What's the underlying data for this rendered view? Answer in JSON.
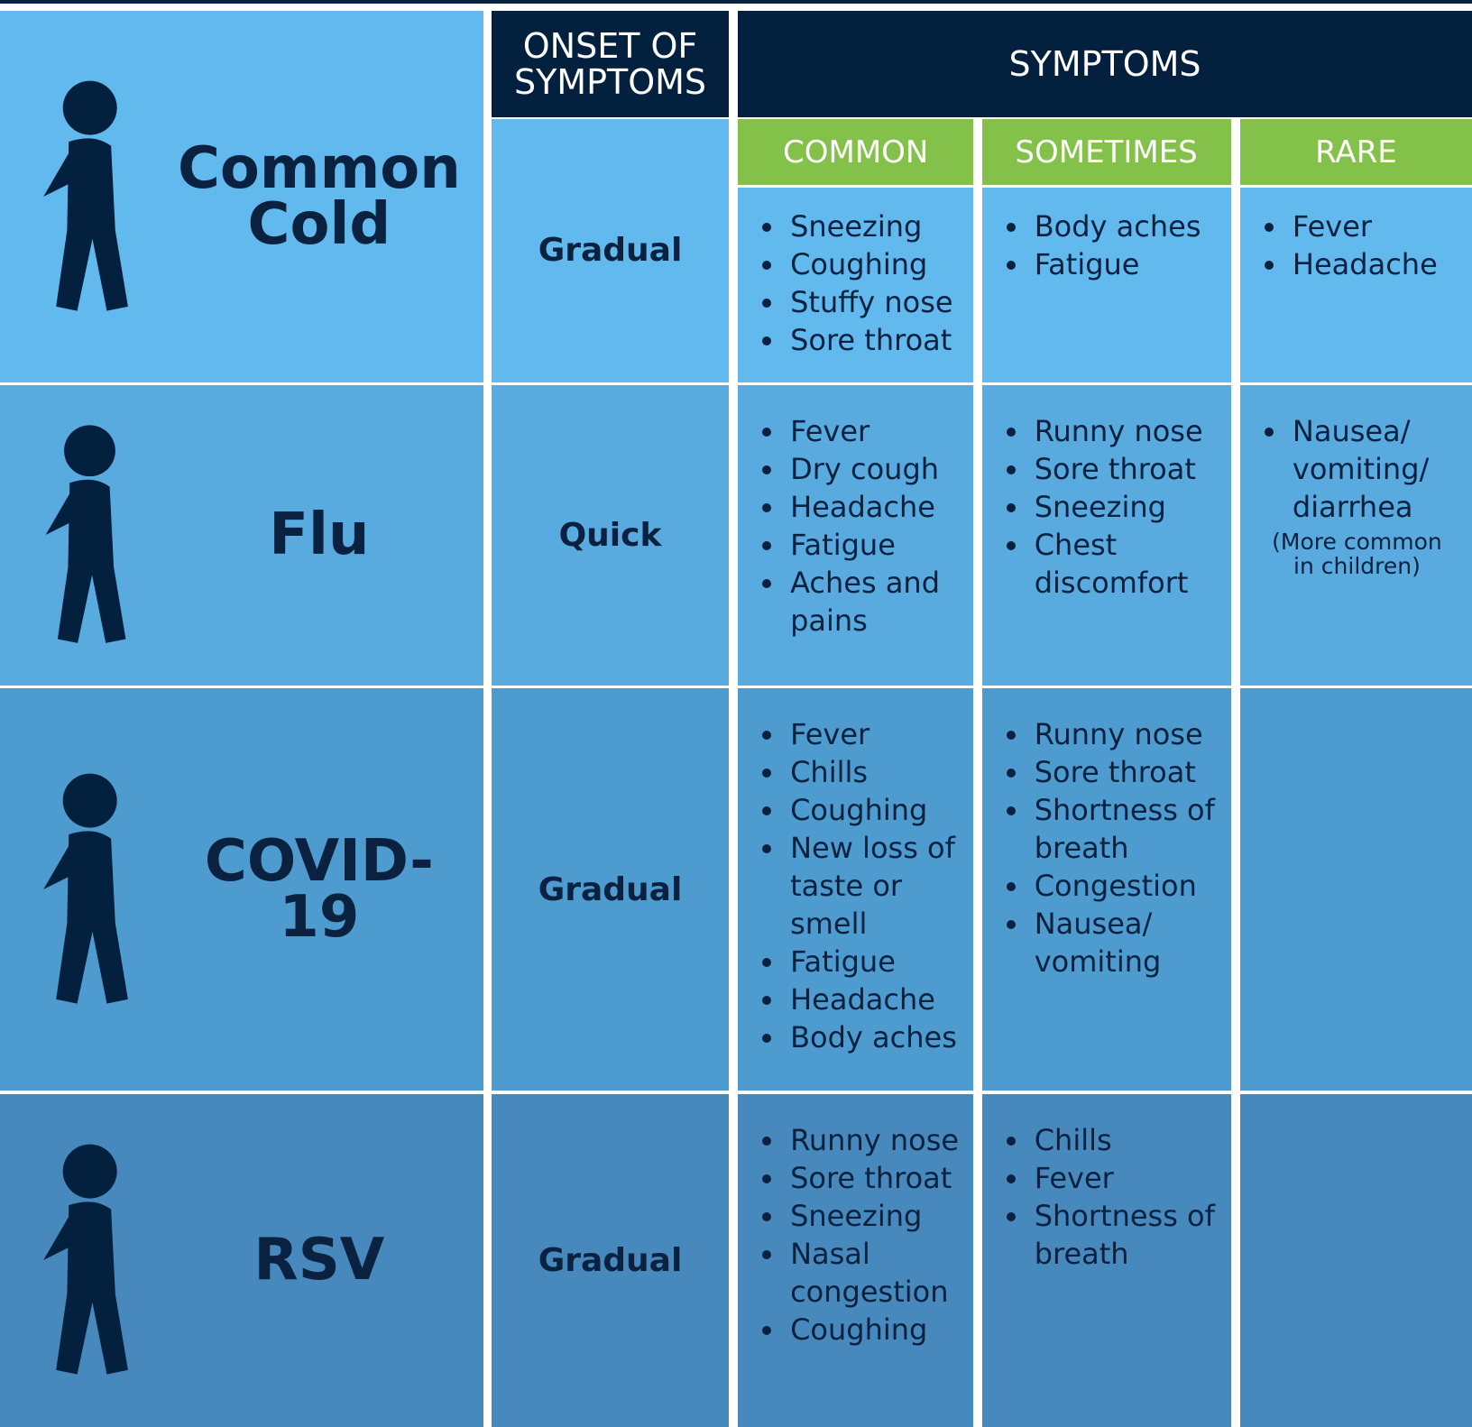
{
  "header": {
    "onset": "ONSET OF SYMPTOMS",
    "symptoms": "SYMPTOMS",
    "subheaders": [
      "COMMON",
      "SOMETIMES",
      "RARE"
    ]
  },
  "rows": [
    {
      "name": "Common Cold",
      "onset": "Gradual",
      "common": [
        "Sneezing",
        "Coughing",
        "Stuffy nose",
        "Sore throat"
      ],
      "sometimes": [
        "Body aches",
        "Fatigue"
      ],
      "rare": [
        "Fever",
        "Headache"
      ]
    },
    {
      "name": "Flu",
      "onset": "Quick",
      "common": [
        "Fever",
        "Dry cough",
        "Headache",
        "Fatigue",
        "Aches and pains"
      ],
      "sometimes": [
        "Runny nose",
        "Sore throat",
        "Sneezing",
        "Chest discomfort"
      ],
      "rare": [
        "Nausea/ vomiting/ diarrhea"
      ],
      "rare_note": "(More common in children)"
    },
    {
      "name": "COVID-19",
      "onset": "Gradual",
      "common": [
        "Fever",
        "Chills",
        "Coughing",
        "New loss of taste or smell",
        "Fatigue",
        "Headache",
        "Body aches"
      ],
      "sometimes": [
        "Runny nose",
        "Sore throat",
        "Shortness of breath",
        "Congestion",
        "Nausea/ vomiting"
      ],
      "rare": []
    },
    {
      "name": "RSV",
      "onset": "Gradual",
      "common": [
        "Runny nose",
        "Sore throat",
        "Sneezing",
        "Nasal congestion",
        "Coughing"
      ],
      "sometimes": [
        "Chills",
        "Fever",
        "Shortness of breath"
      ],
      "rare": []
    }
  ]
}
